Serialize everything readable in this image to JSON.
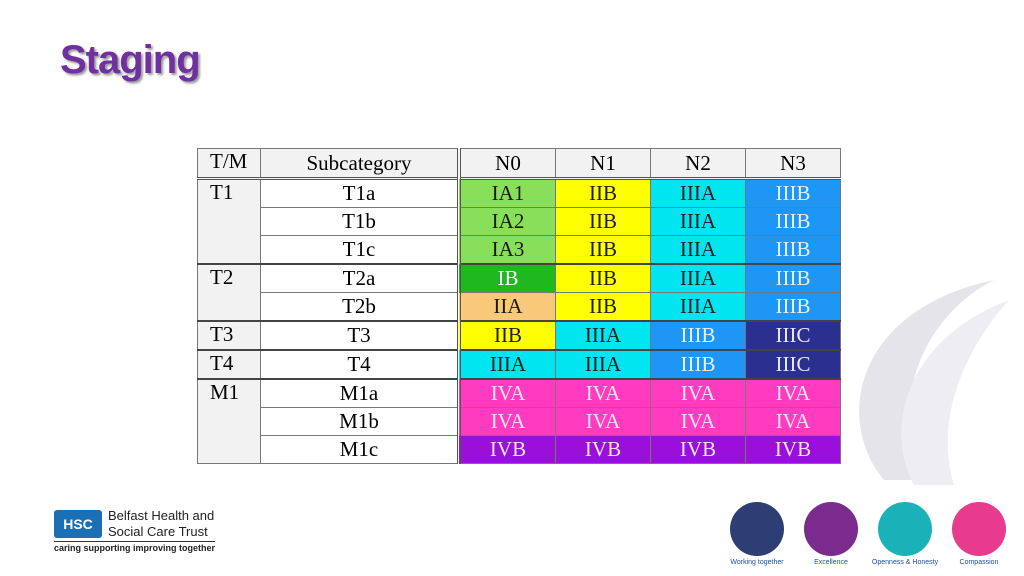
{
  "title": "Staging",
  "table": {
    "header": [
      "T/M",
      "Subcategory",
      "N0",
      "N1",
      "N2",
      "N3"
    ],
    "groups": [
      {
        "tm": "T1",
        "rows": [
          {
            "sub": "T1a",
            "stages": [
              "IA1",
              "IIB",
              "IIIA",
              "IIIB"
            ]
          },
          {
            "sub": "T1b",
            "stages": [
              "IA2",
              "IIB",
              "IIIA",
              "IIIB"
            ]
          },
          {
            "sub": "T1c",
            "stages": [
              "IA3",
              "IIB",
              "IIIA",
              "IIIB"
            ]
          }
        ]
      },
      {
        "tm": "T2",
        "rows": [
          {
            "sub": "T2a",
            "stages": [
              "IB",
              "IIB",
              "IIIA",
              "IIIB"
            ]
          },
          {
            "sub": "T2b",
            "stages": [
              "IIA",
              "IIB",
              "IIIA",
              "IIIB"
            ]
          }
        ]
      },
      {
        "tm": "T3",
        "rows": [
          {
            "sub": "T3",
            "stages": [
              "IIB",
              "IIIA",
              "IIIB",
              "IIIC"
            ]
          }
        ]
      },
      {
        "tm": "T4",
        "rows": [
          {
            "sub": "T4",
            "stages": [
              "IIIA",
              "IIIA",
              "IIIB",
              "IIIC"
            ]
          }
        ]
      },
      {
        "tm": "M1",
        "rows": [
          {
            "sub": "M1a",
            "stages": [
              "IVA",
              "IVA",
              "IVA",
              "IVA"
            ]
          },
          {
            "sub": "M1b",
            "stages": [
              "IVA",
              "IVA",
              "IVA",
              "IVA"
            ]
          },
          {
            "sub": "M1c",
            "stages": [
              "IVB",
              "IVB",
              "IVB",
              "IVB"
            ]
          }
        ]
      }
    ],
    "stage_colors": {
      "IA1": [
        "#88e05a",
        "#1a1a1a"
      ],
      "IA2": [
        "#88e05a",
        "#1a1a1a"
      ],
      "IA3": [
        "#88e05a",
        "#1a1a1a"
      ],
      "IB": [
        "#1fb81f",
        "#ffffff"
      ],
      "IIA": [
        "#f9c878",
        "#1a1a1a"
      ],
      "IIB": [
        "#ffff00",
        "#1a1a1a"
      ],
      "IIIA": [
        "#00e5f0",
        "#1a1a1a"
      ],
      "IIIB": [
        "#1e96f5",
        "#e8f2ff"
      ],
      "IIIC": [
        "#2b2f8f",
        "#e8e8ff"
      ],
      "IVA": [
        "#ff3cc0",
        "#ffe8f8"
      ],
      "IVB": [
        "#9b10d8",
        "#f4e8ff"
      ]
    }
  },
  "logo": {
    "badge": "HSC",
    "line1": "Belfast Health and",
    "line2": "Social Care Trust",
    "tagline": "caring supporting improving together"
  },
  "values": [
    "Working together",
    "Excellence",
    "Openness & Honesty",
    "Compassion"
  ]
}
